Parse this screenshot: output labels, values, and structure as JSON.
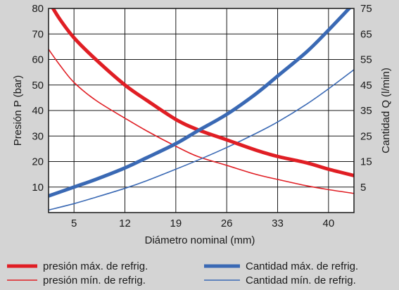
{
  "chart_data": {
    "type": "line",
    "x_axis": {
      "label": "Diámetro nominal (mm)",
      "range": [
        1.5,
        43.5
      ],
      "ticks": [
        5,
        12,
        19,
        26,
        33,
        40
      ],
      "grid": true
    },
    "y_left": {
      "label": "Presión P (bar)",
      "range": [
        0,
        80
      ],
      "ticks": [
        10,
        20,
        30,
        40,
        50,
        60,
        70,
        80
      ],
      "grid": true
    },
    "y_right": {
      "label": "Cantidad Q (l/min)",
      "range": [
        -5,
        75
      ],
      "ticks": [
        5,
        15,
        25,
        35,
        45,
        55,
        65,
        75
      ]
    },
    "series": [
      {
        "name": "presión máx. de refrig.",
        "axis": "left",
        "color": "#e01e24",
        "weight": "thick",
        "x": [
          1.5,
          3,
          5,
          8,
          12,
          15,
          19,
          22,
          26,
          30,
          33,
          37,
          40,
          43.5
        ],
        "values": [
          83,
          76,
          68.5,
          60,
          50,
          44,
          36.5,
          32.5,
          28.5,
          24.5,
          22,
          19.5,
          17,
          14.5
        ]
      },
      {
        "name": "presión mín. de refrig.",
        "axis": "left",
        "color": "#e01e24",
        "weight": "thin",
        "x": [
          1.5,
          3,
          5,
          8,
          12,
          15,
          19,
          22,
          26,
          30,
          33,
          37,
          40,
          43.5
        ],
        "values": [
          64,
          58,
          51,
          44,
          37,
          32,
          26,
          22,
          18.5,
          15,
          13,
          10.5,
          9,
          7.5
        ]
      },
      {
        "name": "Cantidad máx. de refrig.",
        "axis": "right",
        "color": "#3a69b4",
        "weight": "thick",
        "x": [
          1.5,
          5,
          8,
          12,
          15,
          19,
          22,
          26,
          30,
          33,
          37,
          40,
          43.5
        ],
        "values": [
          1.5,
          5,
          8,
          12.5,
          16.5,
          22,
          27,
          33.5,
          41.5,
          48.5,
          58,
          66.5,
          77
        ]
      },
      {
        "name": "Cantidad mín. de refrig.",
        "axis": "right",
        "color": "#3a69b4",
        "weight": "thin",
        "x": [
          1.5,
          5,
          8,
          12,
          15,
          19,
          22,
          26,
          30,
          33,
          37,
          40,
          43.5
        ],
        "values": [
          -4,
          -1.5,
          1,
          4.5,
          7.5,
          12,
          15.5,
          20.5,
          26,
          30.5,
          37.5,
          43.5,
          51
        ]
      }
    ],
    "legend_position": "bottom"
  }
}
